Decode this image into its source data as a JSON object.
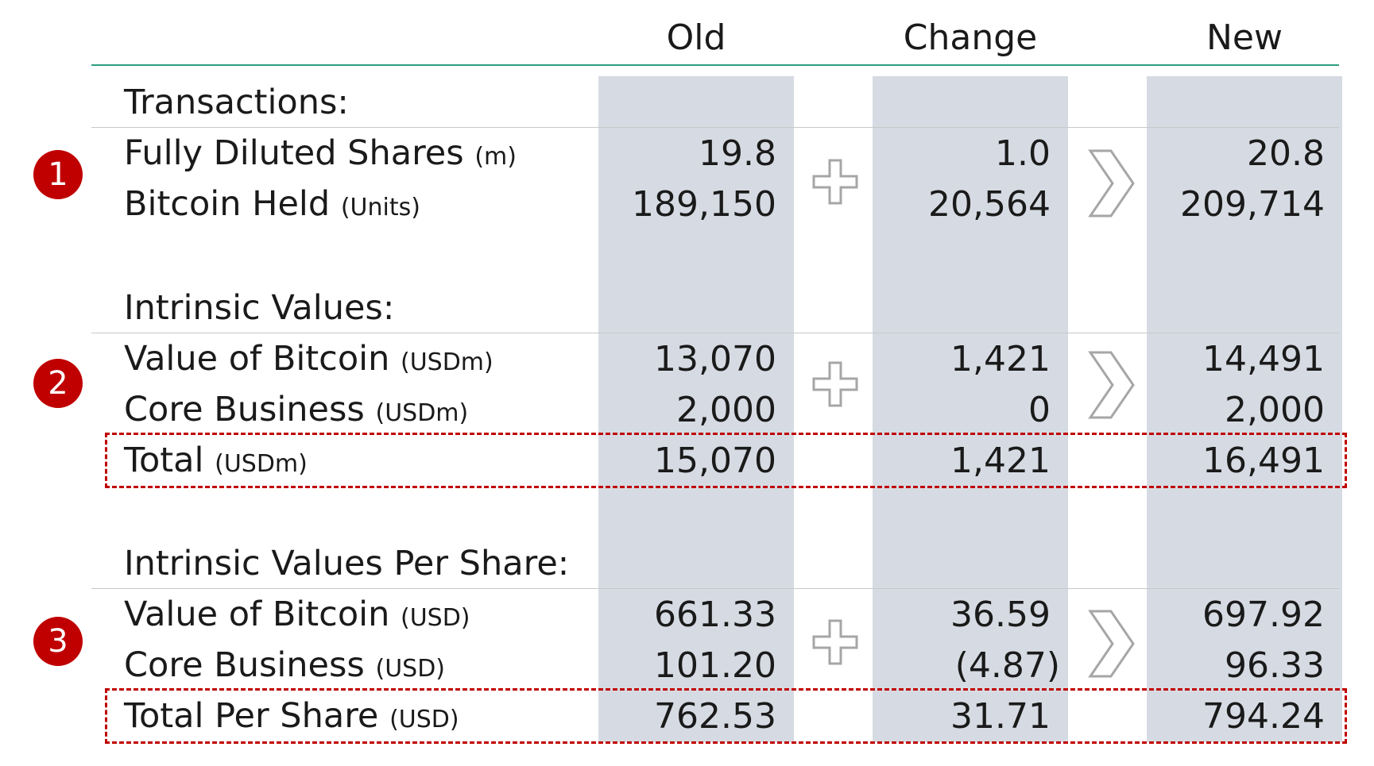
{
  "columns": {
    "old": "Old",
    "change": "Change",
    "new": "New"
  },
  "sections": [
    {
      "badge": "1",
      "title": "Transactions:",
      "rows": [
        {
          "label": "Fully Diluted Shares",
          "unit": "(m)",
          "old": "19.8",
          "change": "1.0",
          "new": "20.8"
        },
        {
          "label": "Bitcoin Held",
          "unit": "(Units)",
          "old": "189,150",
          "change": "20,564",
          "new": "209,714"
        }
      ]
    },
    {
      "badge": "2",
      "title": "Intrinsic Values:",
      "rows": [
        {
          "label": "Value of Bitcoin",
          "unit": "(USDm)",
          "old": "13,070",
          "change": "1,421",
          "new": "14,491"
        },
        {
          "label": "Core Business",
          "unit": "(USDm)",
          "old": "2,000",
          "change": "0",
          "new": "2,000"
        }
      ],
      "total": {
        "label": "Total",
        "unit": "(USDm)",
        "old": "15,070",
        "change": "1,421",
        "new": "16,491"
      }
    },
    {
      "badge": "3",
      "title": "Intrinsic Values Per Share:",
      "rows": [
        {
          "label": "Value of Bitcoin",
          "unit": "(USD)",
          "old": "661.33",
          "change": "36.59",
          "new": "697.92"
        },
        {
          "label": "Core Business",
          "unit": "(USD)",
          "old": "101.20",
          "change": "(4.87)",
          "new": "96.33"
        }
      ],
      "total": {
        "label": "Total Per Share",
        "unit": "(USD)",
        "old": "762.53",
        "change": "31.71",
        "new": "794.24"
      }
    }
  ],
  "colors": {
    "accent_line": "#2e9e80",
    "badge": "#c00000",
    "column_shade": "#d6dbe3",
    "dashed_box": "#c00000"
  },
  "icons": {
    "plus": "plus-icon",
    "arrow": "chevron-right-icon"
  }
}
